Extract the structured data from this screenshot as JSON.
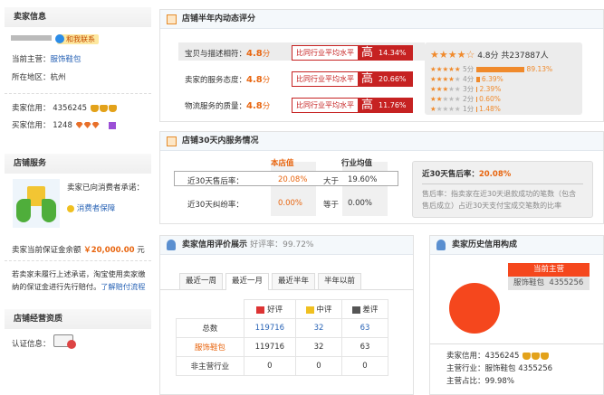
{
  "seller_info": {
    "title": "卖家信息",
    "contact": "和我联系",
    "main_label": "当前主营：",
    "main_value": "服饰鞋包",
    "region_label": "所在地区：",
    "region_value": "杭州",
    "seller_credit_label": "卖家信用：",
    "seller_credit": "4356245",
    "buyer_credit_label": "买家信用：",
    "buyer_credit": "1248"
  },
  "shop_service": {
    "title": "店铺服务",
    "promise": "卖家已向消费者承诺：",
    "guarantee": "消费者保障",
    "deposit_label": "卖家当前保证金余额",
    "deposit_value": "￥20,000.00",
    "deposit_unit": "元",
    "note": "若卖家未履行上述承诺，淘宝使用卖家缴纳的保证金进行先行赔付。",
    "note_link": "了解赔付流程"
  },
  "qualification": {
    "title": "店铺经营资质",
    "label": "认证信息："
  },
  "dsr": {
    "title": "店铺半年内动态评分",
    "compare_label": "比同行业平均水平",
    "high": "高",
    "unit": "分",
    "rows": [
      {
        "label": "宝贝与描述相符：",
        "score": "4.8",
        "pct": "14.34%"
      },
      {
        "label": "卖家的服务态度：",
        "score": "4.8",
        "pct": "20.66%"
      },
      {
        "label": "物流服务的质量：",
        "score": "4.8",
        "pct": "11.76%"
      }
    ],
    "summary_score": "4.8分",
    "summary_count": "共237887人",
    "dist": [
      {
        "label": "5分",
        "pct": "89.13%",
        "value": 89.13
      },
      {
        "label": "4分",
        "pct": "6.39%",
        "value": 6.39
      },
      {
        "label": "3分",
        "pct": "2.39%",
        "value": 2.39
      },
      {
        "label": "2分",
        "pct": "0.60%",
        "value": 0.6
      },
      {
        "label": "1分",
        "pct": "1.48%",
        "value": 1.48
      }
    ]
  },
  "service30": {
    "title": "店铺30天内服务情况",
    "col_shop": "本店值",
    "col_avg": "行业均值",
    "rows": [
      {
        "label": "近30天售后率：",
        "shop": "20.08%",
        "cmp": "大于",
        "avg": "19.60%"
      },
      {
        "label": "近30天纠纷率：",
        "shop": "0.00%",
        "cmp": "等于",
        "avg": "0.00%"
      }
    ],
    "tip_title": "近30天售后率：",
    "tip_value": "20.08%",
    "tip_text": "售后率：指卖家在近30天退款成功的笔数（包含售后成立）占近30天支付宝成交笔数的比率"
  },
  "credit": {
    "title": "卖家信用评价展示",
    "rate": "好评率：99.72%",
    "tabs": [
      "最近一周",
      "最近一月",
      "最近半年",
      "半年以前"
    ],
    "active_tab": 1,
    "headers": [
      "好评",
      "中评",
      "差评"
    ],
    "rows": [
      {
        "label": "总数",
        "values": [
          "119716",
          "32",
          "63"
        ]
      },
      {
        "label": "服饰鞋包",
        "values": [
          "119716",
          "32",
          "63"
        ]
      },
      {
        "label": "非主营行业",
        "values": [
          "0",
          "0",
          "0"
        ]
      }
    ]
  },
  "history": {
    "title": "卖家历史信用构成",
    "legend_title": "当前主营",
    "legend_item": "服饰鞋包",
    "legend_value": "4355256",
    "pie_color": "#f5471d",
    "seller_credit": "卖家信用：4356245",
    "main_industry": "主营行业：服饰鞋包 4355256",
    "main_ratio": "主营占比：99.98%"
  }
}
